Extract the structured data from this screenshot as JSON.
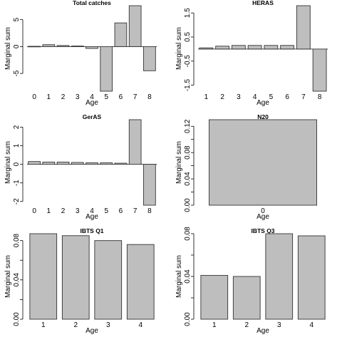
{
  "chart_data": [
    {
      "type": "bar",
      "title": "Total catches",
      "xlabel": "Age",
      "ylabel": "Marginal sum",
      "categories": [
        "0",
        "1",
        "2",
        "3",
        "4",
        "5",
        "6",
        "7",
        "8"
      ],
      "values": [
        0.05,
        0.35,
        0.2,
        0.1,
        -0.35,
        -8.3,
        4.4,
        7.6,
        -4.5
      ],
      "ylim": [
        -8.3,
        7.6
      ],
      "yticks": [
        -5,
        0,
        5
      ],
      "ytick_labels": [
        "-5",
        "0",
        "5"
      ],
      "bar_color": "#bebebe"
    },
    {
      "type": "bar",
      "title": "HERAS",
      "xlabel": "Age",
      "ylabel": "Marginal sum",
      "categories": [
        "1",
        "2",
        "3",
        "4",
        "5",
        "6",
        "7",
        "8"
      ],
      "values": [
        0.05,
        0.12,
        0.15,
        0.15,
        0.15,
        0.15,
        1.8,
        -1.75
      ],
      "ylim": [
        -1.75,
        1.8
      ],
      "yticks": [
        -1.5,
        -0.5,
        0.5,
        1.5
      ],
      "ytick_labels": [
        "-1.5",
        "-0.5",
        "0.5",
        "1.5"
      ],
      "bar_color": "#bebebe"
    },
    {
      "type": "bar",
      "title": "GerAS",
      "xlabel": "Age",
      "ylabel": "Marginal sum",
      "categories": [
        "0",
        "1",
        "2",
        "3",
        "4",
        "5",
        "6",
        "7",
        "8"
      ],
      "values": [
        0.15,
        0.12,
        0.12,
        0.1,
        0.08,
        0.08,
        0.06,
        2.4,
        -2.2
      ],
      "ylim": [
        -2.2,
        2.4
      ],
      "yticks": [
        -2,
        -1,
        0,
        1,
        2
      ],
      "ytick_labels": [
        "-2",
        "-1",
        "0",
        "1",
        "2"
      ],
      "bar_color": "#bebebe"
    },
    {
      "type": "bar",
      "title": "N20",
      "xlabel": "Age",
      "ylabel": "Marginal sum",
      "categories": [
        "0"
      ],
      "values": [
        0.13
      ],
      "ylim": [
        0,
        0.13
      ],
      "yticks": [
        0,
        0.02,
        0.04,
        0.06,
        0.08,
        0.1,
        0.12
      ],
      "ytick_labels": [
        "0.00",
        "",
        "0.04",
        "",
        "0.08",
        "",
        "0.12"
      ],
      "bar_color": "#bebebe"
    },
    {
      "type": "bar",
      "title": "IBTS Q1",
      "xlabel": "Age",
      "ylabel": "Marginal sum",
      "categories": [
        "1",
        "2",
        "3",
        "4"
      ],
      "values": [
        0.087,
        0.085,
        0.08,
        0.076
      ],
      "ylim": [
        0,
        0.087
      ],
      "yticks": [
        0,
        0.02,
        0.04,
        0.06,
        0.08
      ],
      "ytick_labels": [
        "0.00",
        "",
        "0.04",
        "",
        "0.08"
      ],
      "bar_color": "#bebebe"
    },
    {
      "type": "bar",
      "title": "IBTS Q3",
      "xlabel": "Age",
      "ylabel": "Marginal sum",
      "categories": [
        "1",
        "2",
        "3",
        "4"
      ],
      "values": [
        0.041,
        0.04,
        0.08,
        0.078
      ],
      "ylim": [
        0,
        0.08
      ],
      "yticks": [
        0,
        0.02,
        0.04,
        0.06,
        0.08
      ],
      "ytick_labels": [
        "0.00",
        "",
        "0.04",
        "",
        "0.08"
      ],
      "bar_color": "#bebebe"
    }
  ]
}
